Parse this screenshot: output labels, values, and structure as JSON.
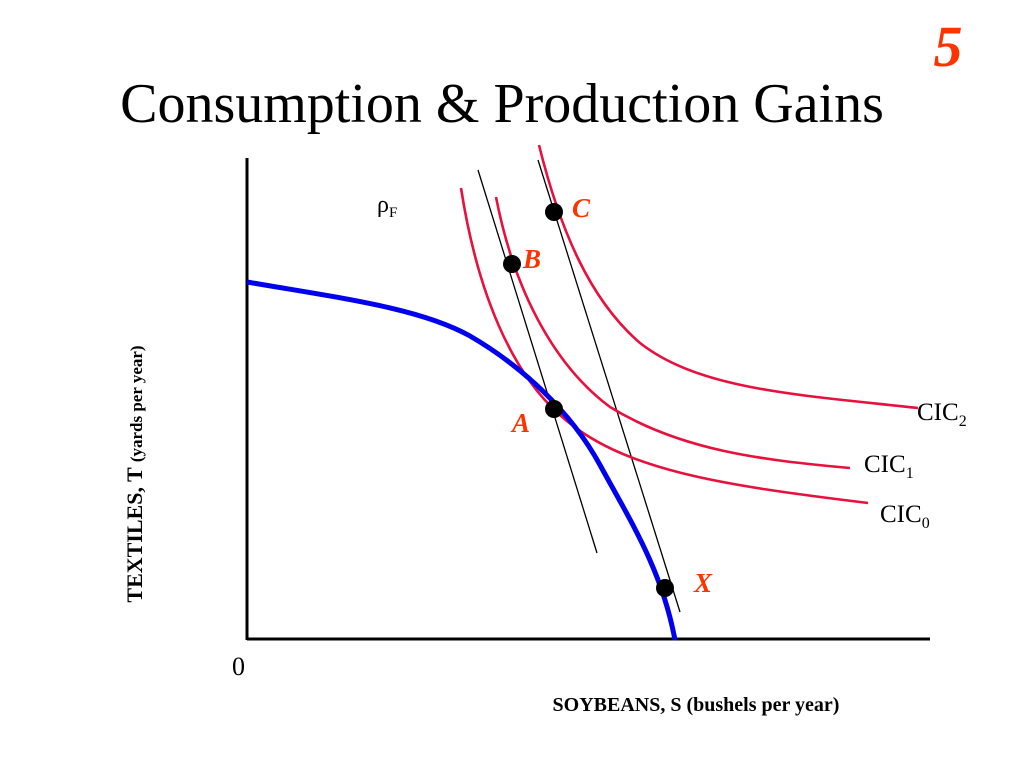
{
  "slide": {
    "number": "5",
    "title": "Consumption & Production Gains"
  },
  "diagram": {
    "origin_label": "0",
    "x_axis_label": "SOYBEANS, S (bushels per year)",
    "y_axis_label_main": "TEXTILES, T ",
    "y_axis_label_unit": "(yards per year)",
    "price_line": {
      "symbol": "ρ",
      "subscript": "F"
    },
    "points": [
      {
        "id": "A",
        "label": "A"
      },
      {
        "id": "B",
        "label": "B"
      },
      {
        "id": "C",
        "label": "C"
      },
      {
        "id": "X",
        "label": "X"
      }
    ],
    "curves": {
      "ppf": {
        "color": "#0000ee"
      },
      "cic0": {
        "label": "CIC",
        "subscript": "0",
        "color": "#e8103c"
      },
      "cic1": {
        "label": "CIC",
        "subscript": "1",
        "color": "#e8103c"
      },
      "cic2": {
        "label": "CIC",
        "subscript": "2",
        "color": "#e8103c"
      }
    },
    "colors": {
      "point_label": "#ff3300",
      "axis": "#000000",
      "price_lines": "#000000"
    }
  }
}
